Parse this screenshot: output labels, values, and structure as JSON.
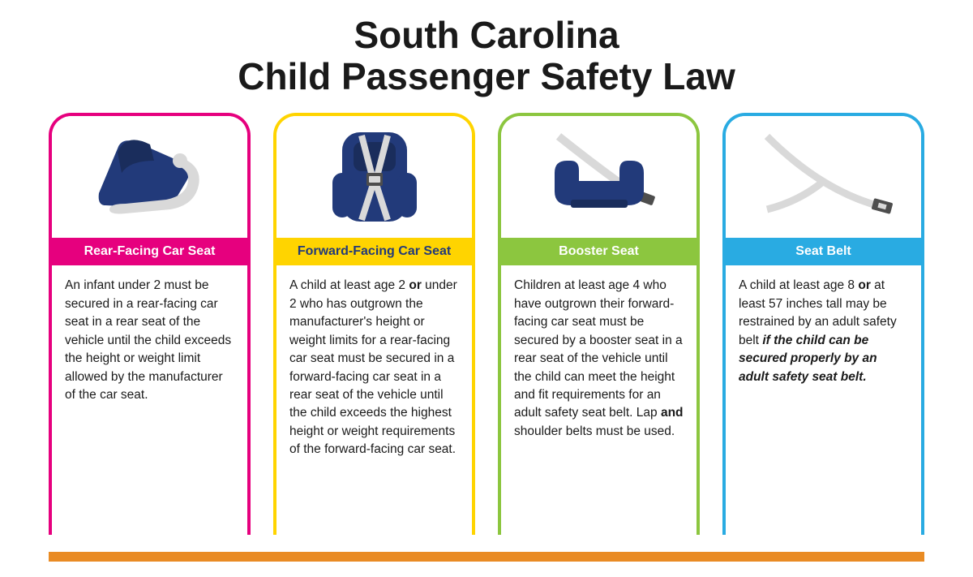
{
  "title": {
    "line1": "South Carolina",
    "line2": "Child Passenger Safety Law",
    "fontsize": 46,
    "color": "#1a1a1a"
  },
  "baseline_color": "#e98b24",
  "cards": [
    {
      "border_color": "#e6007e",
      "label_bg": "#e6007e",
      "label_text_color": "#ffffff",
      "label": "Rear-Facing Car Seat",
      "icon": "rear-facing-seat",
      "icon_primary": "#223a7a",
      "icon_secondary": "#d9d9d9",
      "body_html": "An infant under 2 must be secured in a rear-facing car seat in a rear seat of the vehicle until the child exceeds the height or weight limit allowed by the manufacturer of the car seat."
    },
    {
      "border_color": "#ffd400",
      "label_bg": "#ffd400",
      "label_text_color": "#223a7a",
      "label": "Forward-Facing Car Seat",
      "icon": "forward-facing-seat",
      "icon_primary": "#223a7a",
      "icon_secondary": "#d9d9d9",
      "body_html": "A child at least age 2 <b>or</b> under 2 who has outgrown the manufac­turer's height or weight limits for a rear-facing car seat must be secured in a forward-facing car seat in a rear seat of the vehicle until the child exceeds the highest height or weight requirements of the forward-facing car seat."
    },
    {
      "border_color": "#8cc63f",
      "label_bg": "#8cc63f",
      "label_text_color": "#ffffff",
      "label": "Booster Seat",
      "icon": "booster-seat",
      "icon_primary": "#223a7a",
      "icon_secondary": "#d9d9d9",
      "body_html": "Children at least age 4 who have outgrown their forward-facing car seat must be secured by a booster seat in a rear seat of the vehicle until the child can meet the height and fit require­ments for an adult safety seat belt. Lap <b>and</b> shoulder belts must be used."
    },
    {
      "border_color": "#29abe2",
      "label_bg": "#29abe2",
      "label_text_color": "#ffffff",
      "label": "Seat Belt",
      "icon": "seat-belt",
      "icon_primary": "#4d4d4d",
      "icon_secondary": "#d9d9d9",
      "body_html": "A child at least age 8 <b>or</b> at least 57 inches tall may be restrained by an adult safety belt <b><i>if the child can be secured properly by an adult safety seat belt.</i></b>"
    }
  ]
}
